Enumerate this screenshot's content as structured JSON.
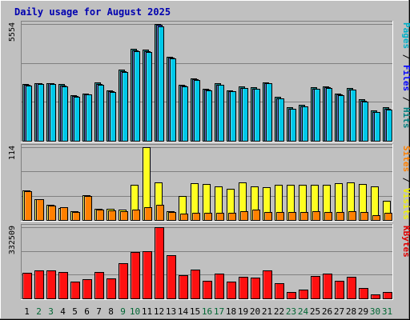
{
  "chart_data": {
    "type": "bar",
    "title": "Daily usage for August 2025",
    "title_color": "#0000b0",
    "background": "#c0c0c0",
    "days": [
      "1",
      "2",
      "3",
      "4",
      "5",
      "6",
      "7",
      "8",
      "9",
      "10",
      "11",
      "12",
      "13",
      "14",
      "15",
      "16",
      "17",
      "18",
      "19",
      "20",
      "21",
      "22",
      "23",
      "24",
      "25",
      "26",
      "27",
      "28",
      "29",
      "30",
      "31"
    ],
    "weekend_days": [
      "2",
      "3",
      "9",
      "10",
      "16",
      "17",
      "23",
      "24",
      "30",
      "31"
    ],
    "day_colors": {
      "weekday": "#000000",
      "weekend": "#006633"
    },
    "panels": [
      {
        "name": "pages-files-hits",
        "ymax_label": "5554",
        "ymax": 5554,
        "gridlines": 3,
        "side_labels": [
          {
            "text": "Pages",
            "color": "#00b0c8"
          },
          {
            "text": " / ",
            "color": "#000000"
          },
          {
            "text": "Files",
            "color": "#0000ff"
          },
          {
            "text": " / ",
            "color": "#000000"
          },
          {
            "text": "Hits",
            "color": "#008080"
          }
        ],
        "series": [
          {
            "name": "Hits",
            "color": "#007777",
            "values": [
              2700,
              2750,
              2750,
              2700,
              2180,
              2260,
              2760,
              2400,
              3370,
              4370,
              4350,
              5554,
              4000,
              2680,
              2980,
              2460,
              2730,
              2410,
              2570,
              2530,
              2790,
              2080,
              1590,
              1700,
              2550,
              2600,
              2240,
              2500,
              1960,
              1430,
              1580
            ]
          },
          {
            "name": "Files",
            "color": "#1a40d0",
            "values": [
              2650,
              2720,
              2720,
              2630,
              2130,
              2220,
              2700,
              2340,
              3320,
              4300,
              4270,
              5500,
              3950,
              2630,
              2930,
              2420,
              2680,
              2360,
              2520,
              2480,
              2740,
              2030,
              1540,
              1650,
              2480,
              2550,
              2190,
              2450,
              1910,
              1380,
              1520
            ]
          },
          {
            "name": "Pages",
            "color": "#00c8e8",
            "values": [
              2620,
              2700,
              2700,
              2600,
              2100,
              2200,
              2680,
              2320,
              3280,
              4260,
              4240,
              5450,
              3920,
              2600,
              2900,
              2400,
              2660,
              2340,
              2500,
              2460,
              2720,
              2000,
              1520,
              1620,
              2460,
              2520,
              2160,
              2420,
              1880,
              1360,
              1500
            ]
          }
        ]
      },
      {
        "name": "visits-sites",
        "ymax_label": "114",
        "ymax": 114,
        "gridlines": 3,
        "side_labels": [
          {
            "text": "Sites",
            "color": "#ff8000"
          },
          {
            "text": " / ",
            "color": "#000000"
          },
          {
            "text": "Visits",
            "color": "#f0f000"
          }
        ],
        "series": [
          {
            "name": "Visits",
            "color": "#ffff20",
            "values": [
              46,
              33,
              24,
              19,
              14,
              39,
              17,
              17,
              16,
              55,
              114,
              59,
              14,
              37,
              57,
              56,
              53,
              49,
              59,
              52,
              51,
              55,
              55,
              55,
              55,
              55,
              58,
              59,
              56,
              53,
              30
            ]
          },
          {
            "name": "Sites",
            "color": "#ff8000",
            "values": [
              45,
              32,
              23,
              20,
              13,
              38,
              16,
              15,
              14,
              16,
              20,
              24,
              13,
              10,
              11,
              11,
              11,
              11,
              14,
              16,
              13,
              13,
              12,
              12,
              14,
              12,
              13,
              14,
              12,
              8,
              11
            ]
          }
        ]
      },
      {
        "name": "kbytes",
        "ymax_label": "332509",
        "ymax": 332509,
        "gridlines": 3,
        "side_labels": [
          {
            "text": "KBytes",
            "color": "#e00000"
          }
        ],
        "series": [
          {
            "name": "KBytes",
            "color": "#ff1010",
            "values": [
              120000,
              130000,
              130000,
              125000,
              78000,
              90000,
              125000,
              95000,
              165000,
              215000,
              220000,
              332509,
              200000,
              108000,
              133000,
              84000,
              116000,
              79000,
              101000,
              99000,
              129000,
              71000,
              30000,
              41000,
              105000,
              115000,
              84000,
              102000,
              50000,
              20000,
              30000
            ]
          }
        ]
      }
    ]
  }
}
